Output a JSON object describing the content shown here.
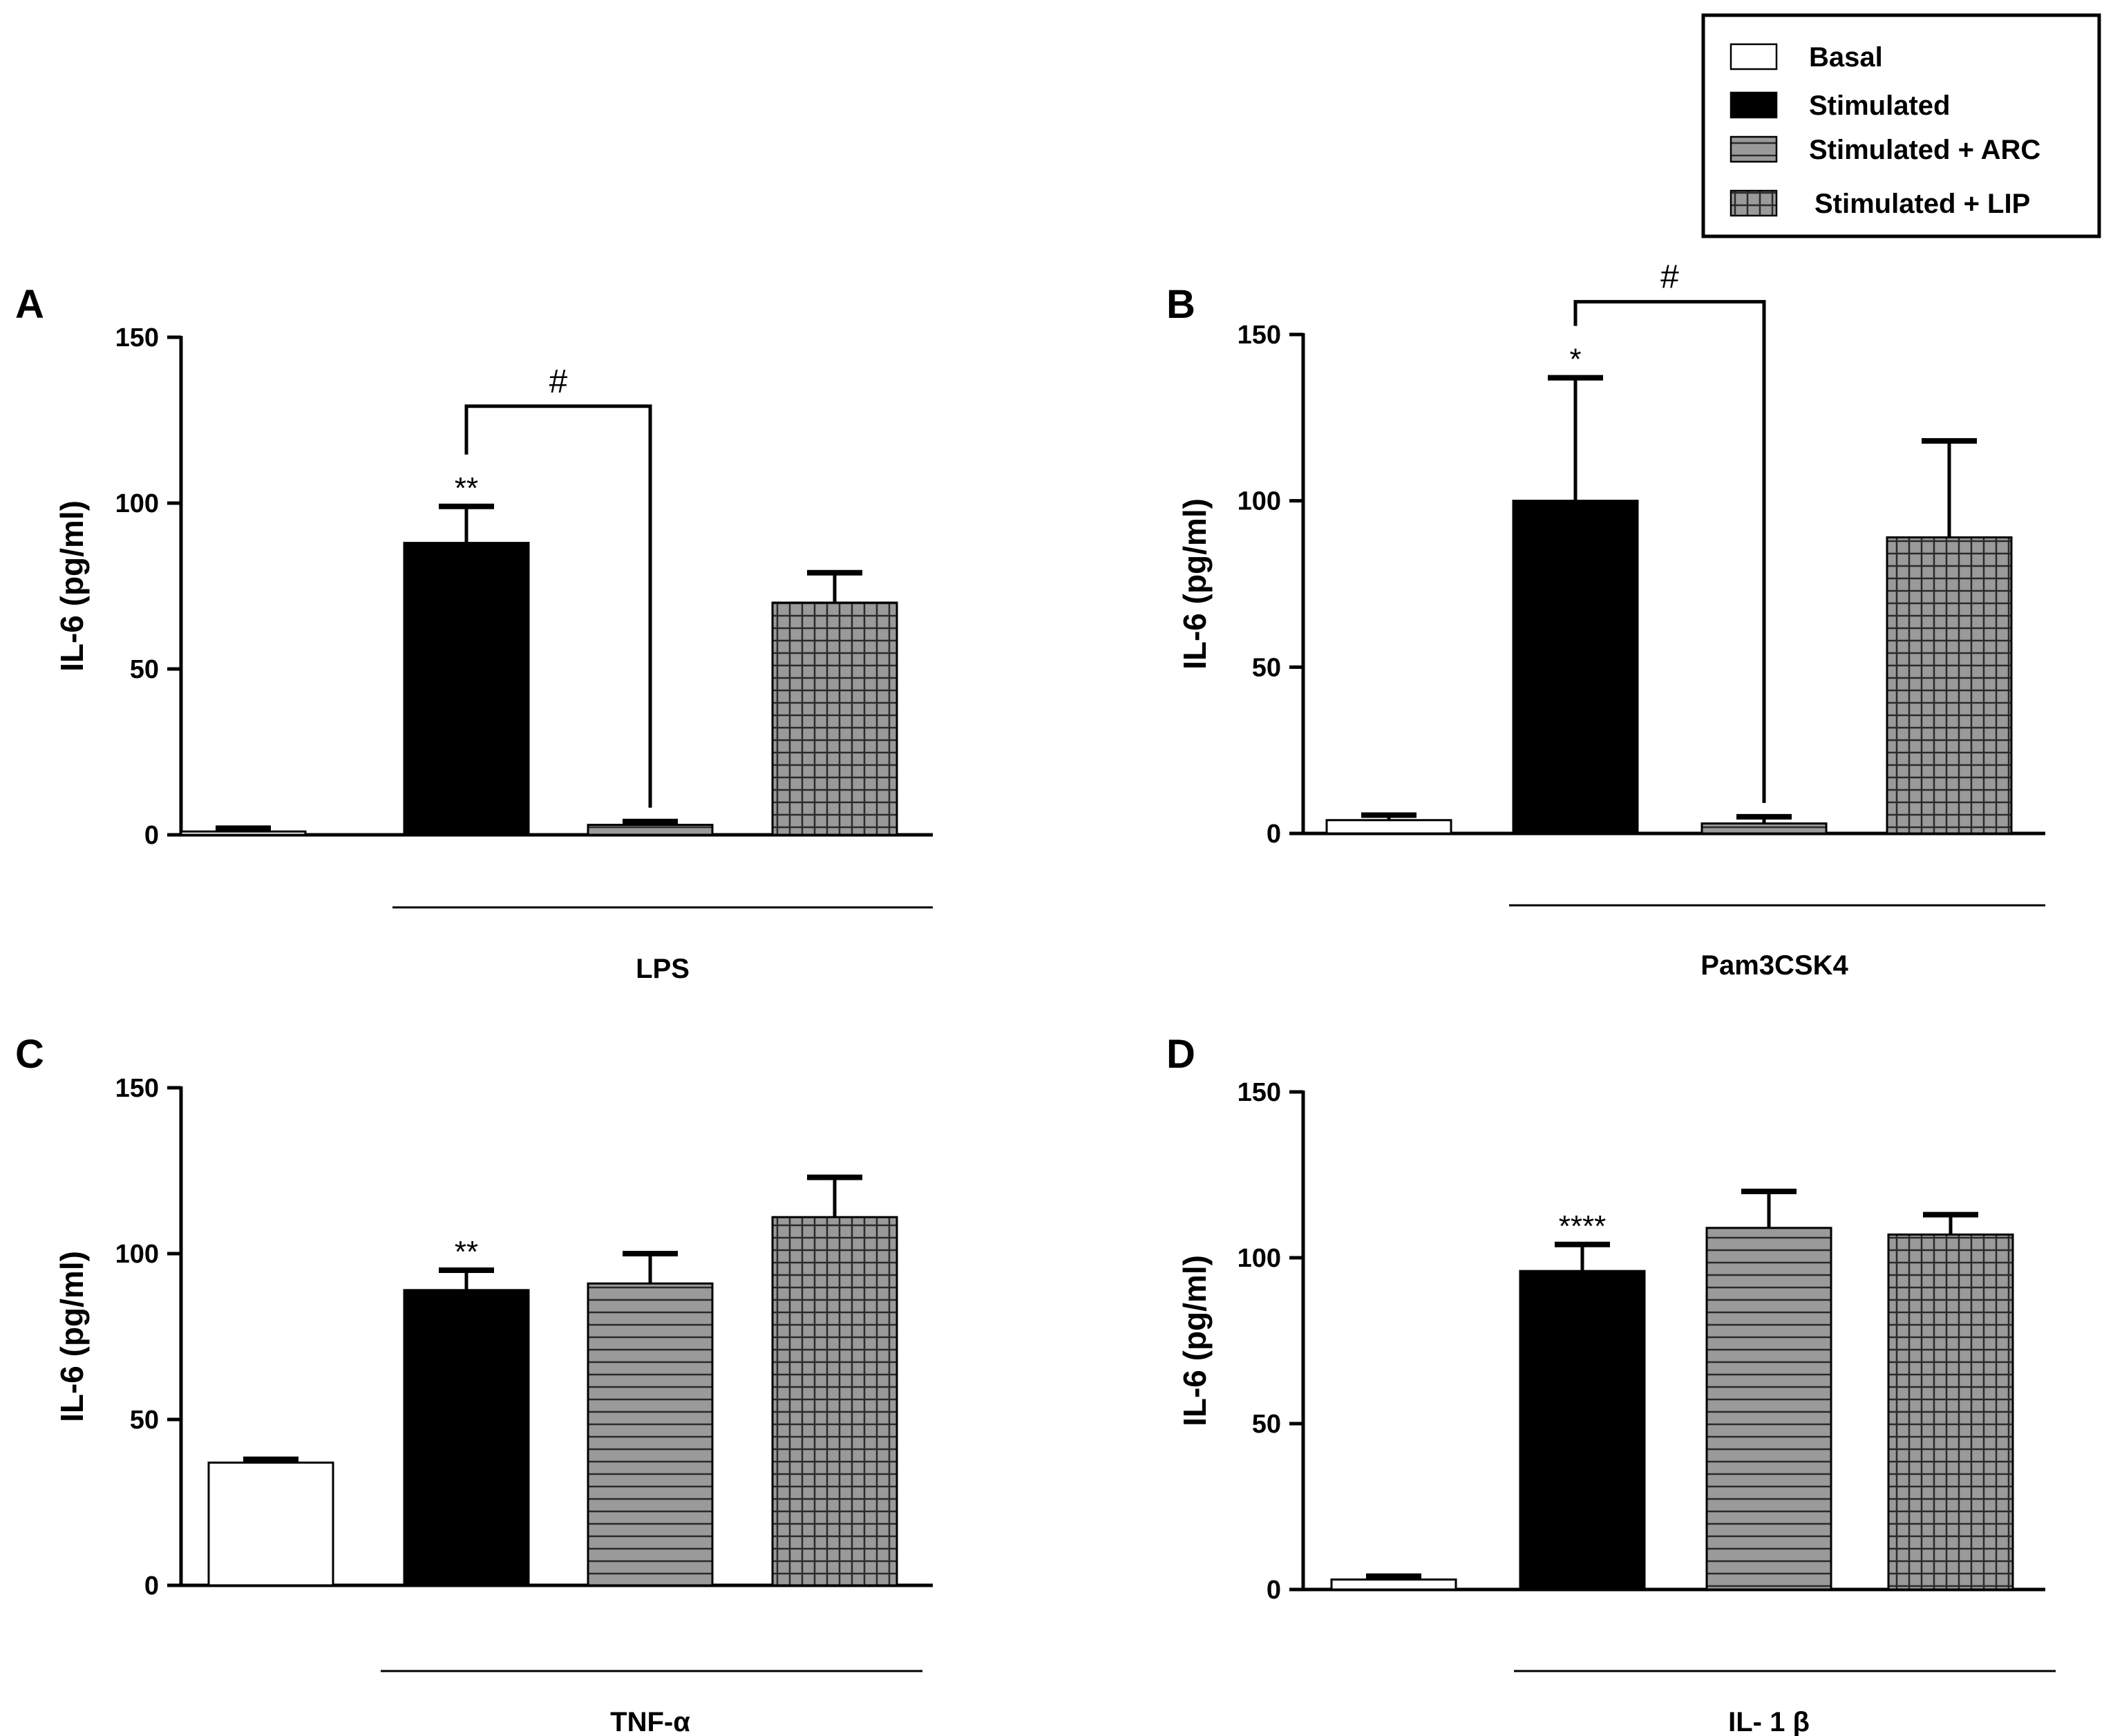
{
  "legend": {
    "items": [
      {
        "label": "Basal",
        "pattern": "white"
      },
      {
        "label": "Stimulated",
        "pattern": "black"
      },
      {
        "label": "Stimulated + ARC",
        "pattern": "hstripe"
      },
      {
        "label": "Stimulated + LIP",
        "pattern": "grid"
      }
    ]
  },
  "colors": {
    "axis": "#000000",
    "bar_black": "#000000",
    "bar_gray": "#9a9a9a",
    "pattern_line": "#2a2a2a",
    "basal_fill": "#ffffff"
  },
  "chart_data": [
    {
      "type": "bar",
      "panel": "A",
      "ylabel": "IL-6 (pg/ml)",
      "ylim": [
        0,
        150
      ],
      "yticks": [
        "0",
        "50",
        "100",
        "150"
      ],
      "categories": [
        "Basal",
        "Stimulated",
        "Stimulated + ARC",
        "Stimulated + LIP"
      ],
      "values": [
        1,
        88,
        3,
        70
      ],
      "errors": [
        1,
        11,
        1,
        9
      ],
      "stars": [
        "",
        "**",
        "",
        ""
      ],
      "stimulus": "LPS",
      "bracket": {
        "from": 1,
        "to": 2,
        "label": "#"
      }
    },
    {
      "type": "bar",
      "panel": "B",
      "ylabel": "IL-6 (pg/ml)",
      "ylim": [
        0,
        150
      ],
      "yticks": [
        "0",
        "50",
        "100",
        "150"
      ],
      "categories": [
        "Basal",
        "Stimulated",
        "Stimulated + ARC",
        "Stimulated + LIP"
      ],
      "values": [
        4,
        100,
        3,
        89
      ],
      "errors": [
        1.5,
        37,
        2,
        29
      ],
      "stars": [
        "",
        "*",
        "",
        ""
      ],
      "stimulus": "Pam3CSK4",
      "bracket": {
        "from": 1,
        "to": 2,
        "label": "#"
      }
    },
    {
      "type": "bar",
      "panel": "C",
      "ylabel": "IL-6 (pg/ml)",
      "ylim": [
        0,
        150
      ],
      "yticks": [
        "0",
        "50",
        "100",
        "150"
      ],
      "categories": [
        "Basal",
        "Stimulated",
        "Stimulated + ARC",
        "Stimulated + LIP"
      ],
      "values": [
        37,
        89,
        91,
        111
      ],
      "errors": [
        1,
        6,
        9,
        12
      ],
      "stars": [
        "",
        "**",
        "",
        ""
      ],
      "stimulus": "TNF-α",
      "bracket": null
    },
    {
      "type": "bar",
      "panel": "D",
      "ylabel": "IL-6 (pg/ml)",
      "ylim": [
        0,
        150
      ],
      "yticks": [
        "0",
        "50",
        "100",
        "150"
      ],
      "categories": [
        "Basal",
        "Stimulated",
        "Stimulated + ARC",
        "Stimulated + LIP"
      ],
      "values": [
        3,
        96,
        109,
        107
      ],
      "errors": [
        1,
        8,
        11,
        6
      ],
      "stars": [
        "",
        "****",
        "",
        ""
      ],
      "stimulus": "IL- 1 β",
      "bracket": null
    }
  ]
}
